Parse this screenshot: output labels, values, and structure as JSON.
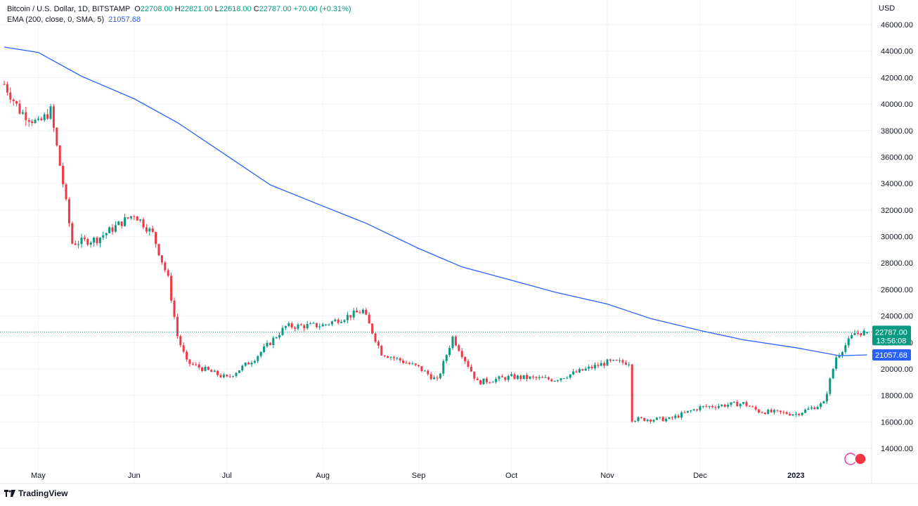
{
  "header": {
    "symbol": "Bitcoin / U.S. Dollar, 1D, BITSTAMP",
    "o_label": "O",
    "o_value": "22708.00",
    "h_label": "H",
    "h_value": "22821.00",
    "l_label": "L",
    "l_value": "22618.00",
    "c_label": "C",
    "c_value": "22787.00",
    "change": "+70.00 (+0.31%)",
    "indicator": "EMA (200, close, 0, SMA, 5)",
    "indicator_value": "21057.68"
  },
  "currency": "USD",
  "badges": {
    "price": "22787.00",
    "countdown": "13:56:08",
    "ema": "21057.68"
  },
  "brand": "TradingView",
  "colors": {
    "up": "#089981",
    "down": "#f23645",
    "ema": "#2962ff",
    "grid": "#f0f3fa",
    "price_line": "#089981"
  },
  "chart_data": {
    "type": "line",
    "series": [
      {
        "name": "EMA (200, close, 0, SMA, 5)",
        "x": [
          "2022-04-20",
          "2022-05-01",
          "2022-05-15",
          "2022-06-01",
          "2022-06-15",
          "2022-07-01",
          "2022-07-15",
          "2022-08-01",
          "2022-08-15",
          "2022-09-01",
          "2022-09-15",
          "2022-10-01",
          "2022-10-15",
          "2022-11-01",
          "2022-11-15",
          "2022-12-01",
          "2022-12-15",
          "2023-01-01",
          "2023-01-15",
          "2023-01-24"
        ],
        "y": [
          44300,
          43900,
          42100,
          40400,
          38600,
          36100,
          33900,
          32300,
          31000,
          29100,
          27700,
          26700,
          25800,
          24900,
          23800,
          22900,
          22200,
          21600,
          21000,
          21057.68
        ]
      },
      {
        "name": "Bitcoin / U.S. Dollar, 1D, BITSTAMP",
        "x": [
          "2022-04-20",
          "2022-04-25",
          "2022-05-01",
          "2022-05-05",
          "2022-05-09",
          "2022-05-12",
          "2022-05-20",
          "2022-06-01",
          "2022-06-07",
          "2022-06-12",
          "2022-06-15",
          "2022-06-18",
          "2022-07-01",
          "2022-07-10",
          "2022-07-20",
          "2022-08-01",
          "2022-08-14",
          "2022-08-20",
          "2022-09-01",
          "2022-09-07",
          "2022-09-12",
          "2022-09-20",
          "2022-10-01",
          "2022-10-15",
          "2022-11-01",
          "2022-11-08",
          "2022-11-09",
          "2022-11-21",
          "2022-12-01",
          "2022-12-15",
          "2022-12-20",
          "2023-01-01",
          "2023-01-10",
          "2023-01-14",
          "2023-01-20",
          "2023-01-24"
        ],
        "y": [
          41500,
          39500,
          38500,
          39500,
          34000,
          29500,
          29800,
          31700,
          30200,
          26800,
          22500,
          20500,
          19300,
          20800,
          23200,
          23300,
          24400,
          21200,
          20100,
          19100,
          22400,
          19000,
          19400,
          19200,
          20500,
          20500,
          16200,
          16200,
          17100,
          17400,
          16800,
          16600,
          17400,
          20900,
          22700,
          22787
        ]
      }
    ],
    "xlabel": "",
    "ylabel": "",
    "x_tick_labels": [
      "May",
      "Jun",
      "Jul",
      "Aug",
      "Sep",
      "Oct",
      "Nov",
      "Dec",
      "2023"
    ],
    "y_tick_labels": [
      "14000.00",
      "16000.00",
      "18000.00",
      "20000.00",
      "22000.00",
      "24000.00",
      "26000.00",
      "28000.00",
      "30000.00",
      "32000.00",
      "34000.00",
      "36000.00",
      "38000.00",
      "40000.00",
      "42000.00",
      "44000.00",
      "46000.00"
    ],
    "ylim": [
      13000,
      47000
    ],
    "xlim": [
      "2022-04-20",
      "2023-01-24"
    ],
    "grid": true,
    "legend": "top-left"
  }
}
